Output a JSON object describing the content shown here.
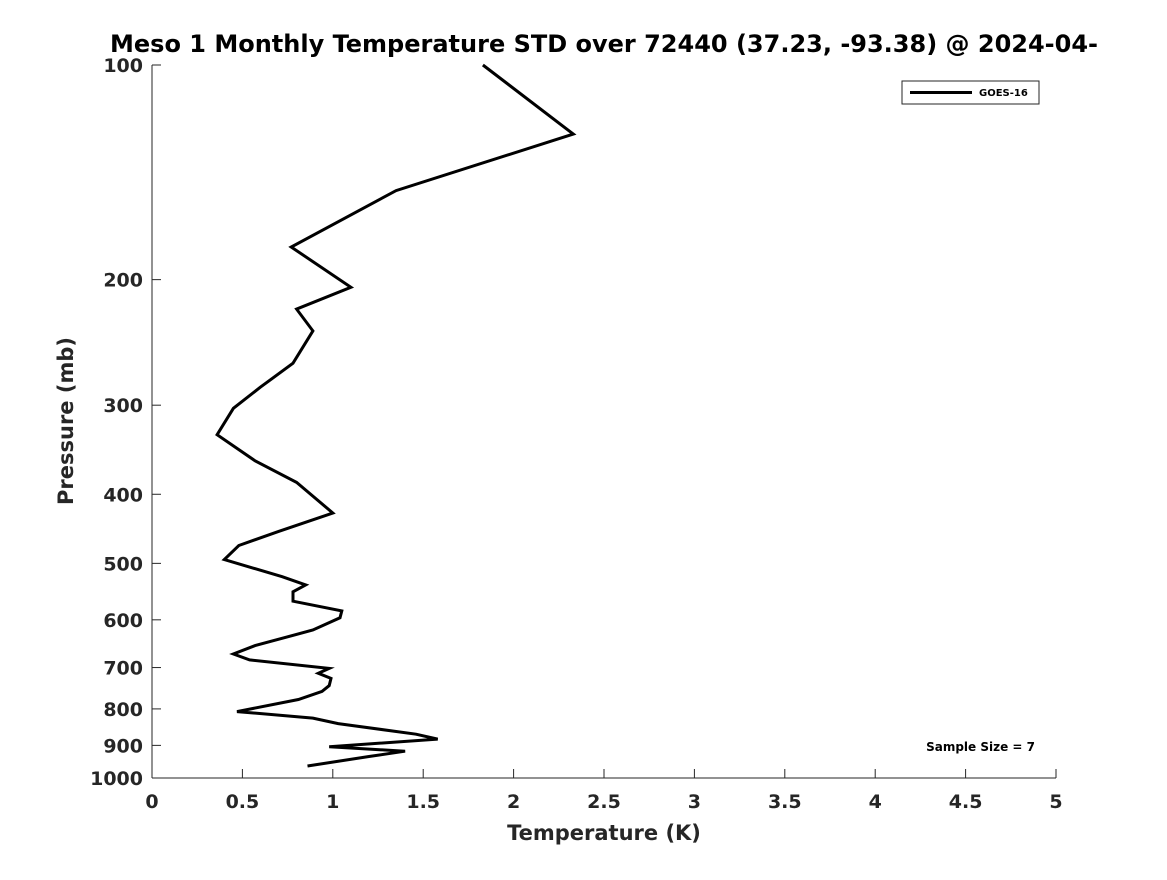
{
  "chart_data": {
    "type": "line",
    "title": "Meso 1 Monthly Temperature STD over 72440 (37.23, -93.38) @ 2024-04-",
    "xlabel": "Temperature (K)",
    "ylabel": "Pressure (mb)",
    "xlim": [
      0,
      5
    ],
    "ylim": [
      100,
      1000
    ],
    "y_scale": "log",
    "y_reversed": true,
    "grid": false,
    "x_ticks": [
      0,
      0.5,
      1,
      1.5,
      2,
      2.5,
      3,
      3.5,
      4,
      4.5,
      5
    ],
    "x_tick_labels": [
      "0",
      "0.5",
      "1",
      "1.5",
      "2",
      "2.5",
      "3",
      "3.5",
      "4",
      "4.5",
      "5"
    ],
    "y_ticks": [
      100,
      200,
      300,
      400,
      500,
      600,
      700,
      800,
      900,
      1000
    ],
    "y_tick_labels": [
      "100",
      "200",
      "300",
      "400",
      "500",
      "600",
      "700",
      "800",
      "900",
      "1000"
    ],
    "legend_position": "top-right",
    "annotation": "Sample Size = 7",
    "series": [
      {
        "name": "GOES-16",
        "color": "#000000",
        "points": [
          [
            1.83,
            100
          ],
          [
            2.33,
            125
          ],
          [
            1.35,
            150
          ],
          [
            0.77,
            180
          ],
          [
            1.1,
            205
          ],
          [
            0.8,
            220
          ],
          [
            0.89,
            236
          ],
          [
            0.78,
            262
          ],
          [
            0.6,
            283
          ],
          [
            0.45,
            303
          ],
          [
            0.36,
            330
          ],
          [
            0.57,
            359
          ],
          [
            0.8,
            385
          ],
          [
            1.0,
            425
          ],
          [
            0.7,
            451
          ],
          [
            0.48,
            472
          ],
          [
            0.4,
            494
          ],
          [
            0.72,
            522
          ],
          [
            0.85,
            536
          ],
          [
            0.78,
            548
          ],
          [
            0.78,
            565
          ],
          [
            1.05,
            583
          ],
          [
            1.04,
            596
          ],
          [
            0.89,
            620
          ],
          [
            0.57,
            652
          ],
          [
            0.45,
            670
          ],
          [
            0.54,
            683
          ],
          [
            0.98,
            702
          ],
          [
            0.92,
            713
          ],
          [
            0.99,
            725
          ],
          [
            0.98,
            742
          ],
          [
            0.94,
            756
          ],
          [
            0.81,
            776
          ],
          [
            0.47,
            807
          ],
          [
            0.89,
            824
          ],
          [
            1.03,
            839
          ],
          [
            1.46,
            868
          ],
          [
            1.58,
            882
          ],
          [
            0.98,
            904
          ],
          [
            1.4,
            917
          ],
          [
            1.2,
            933
          ],
          [
            0.86,
            962
          ]
        ]
      }
    ]
  }
}
